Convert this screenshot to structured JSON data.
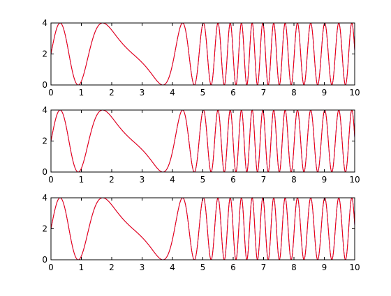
{
  "chart_data": [
    {
      "type": "line",
      "xlim": [
        0,
        10
      ],
      "ylim": [
        0,
        4
      ],
      "xticks": [
        0,
        1,
        2,
        3,
        4,
        5,
        6,
        7,
        8,
        9,
        10
      ],
      "yticks": [
        0,
        2,
        4
      ],
      "grid": false,
      "series": [
        {
          "color": "#0000ff",
          "function": "2 + 2*sin(x^2 + 5*sin(x))"
        },
        {
          "color": "#ff0000",
          "function": "2 + 2*sin(x^2 + 5*sin(x))"
        }
      ]
    },
    {
      "type": "line",
      "xlim": [
        0,
        10
      ],
      "ylim": [
        0,
        4
      ],
      "xticks": [
        0,
        1,
        2,
        3,
        4,
        5,
        6,
        7,
        8,
        9,
        10
      ],
      "yticks": [
        0,
        2,
        4
      ],
      "grid": false,
      "series": [
        {
          "color": "#0000ff",
          "function": "2 + 2*sin(x^2 + 5*sin(x))"
        },
        {
          "color": "#ff0000",
          "function": "2 + 2*sin(x^2 + 5*sin(x))"
        }
      ]
    },
    {
      "type": "line",
      "xlim": [
        0,
        10
      ],
      "ylim": [
        0,
        4
      ],
      "xticks": [
        0,
        1,
        2,
        3,
        4,
        5,
        6,
        7,
        8,
        9,
        10
      ],
      "yticks": [
        0,
        2,
        4
      ],
      "grid": false,
      "series": [
        {
          "color": "#0000ff",
          "function": "2 + 2*sin(x^2 + 5*sin(x))"
        },
        {
          "color": "#ff0000",
          "function": "2 + 2*sin(x^2 + 5*sin(x))"
        }
      ]
    }
  ]
}
